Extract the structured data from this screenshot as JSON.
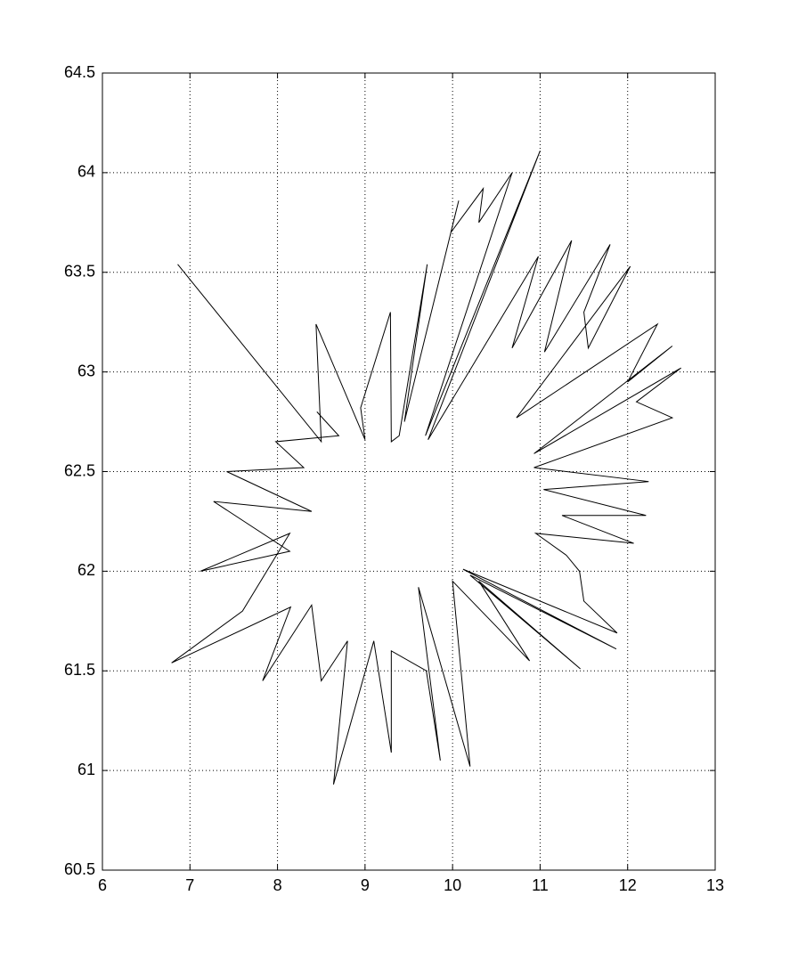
{
  "chart_data": {
    "type": "line",
    "color": "#000000",
    "grid": true,
    "xlim": [
      6,
      13
    ],
    "ylim": [
      60.5,
      64.5
    ],
    "xticks": [
      6,
      7,
      8,
      9,
      10,
      11,
      12,
      13
    ],
    "yticks": [
      60.5,
      61,
      61.5,
      62,
      62.5,
      63,
      63.5,
      64,
      64.5
    ],
    "x": [
      6.86,
      8.5,
      8.44,
      9.0,
      8.95,
      9.29,
      9.3,
      9.39,
      9.71,
      9.45,
      10.07,
      9.98,
      10.35,
      10.3,
      10.68,
      9.69,
      11.0,
      9.72,
      10.98,
      10.68,
      11.36,
      11.05,
      11.8,
      11.5,
      11.55,
      12.03,
      10.73,
      12.34,
      12.0,
      12.51,
      10.93,
      12.61,
      12.1,
      12.51,
      10.93,
      12.24,
      11.04,
      12.21,
      11.25,
      12.07,
      10.95,
      11.3,
      11.45,
      11.5,
      11.88,
      10.12,
      11.87,
      10.2,
      11.46,
      10.3,
      10.88,
      10.0,
      10.2,
      9.61,
      9.86,
      9.7,
      9.3,
      9.3,
      9.1,
      8.64,
      8.8,
      8.5,
      8.39,
      7.83,
      8.15,
      6.79,
      7.6,
      8.14,
      7.12,
      8.14,
      7.27,
      8.39,
      7.42,
      8.3,
      7.98,
      8.7,
      8.45
    ],
    "y": [
      63.54,
      62.65,
      63.24,
      62.66,
      62.82,
      63.3,
      62.65,
      62.68,
      63.54,
      62.75,
      63.86,
      63.7,
      63.92,
      63.75,
      64.0,
      62.68,
      64.11,
      62.66,
      63.58,
      63.12,
      63.66,
      63.1,
      63.64,
      63.3,
      63.12,
      63.53,
      62.77,
      63.24,
      62.95,
      63.13,
      62.59,
      63.02,
      62.85,
      62.77,
      62.52,
      62.45,
      62.41,
      62.28,
      62.28,
      62.14,
      62.19,
      62.08,
      62.0,
      61.85,
      61.69,
      62.01,
      61.61,
      61.98,
      61.51,
      61.95,
      61.55,
      61.95,
      61.02,
      61.92,
      61.05,
      61.5,
      61.6,
      61.09,
      61.65,
      60.93,
      61.65,
      61.45,
      61.83,
      61.45,
      61.82,
      61.54,
      61.8,
      62.19,
      62.0,
      62.1,
      62.35,
      62.3,
      62.5,
      62.52,
      62.65,
      62.68,
      62.8
    ]
  }
}
